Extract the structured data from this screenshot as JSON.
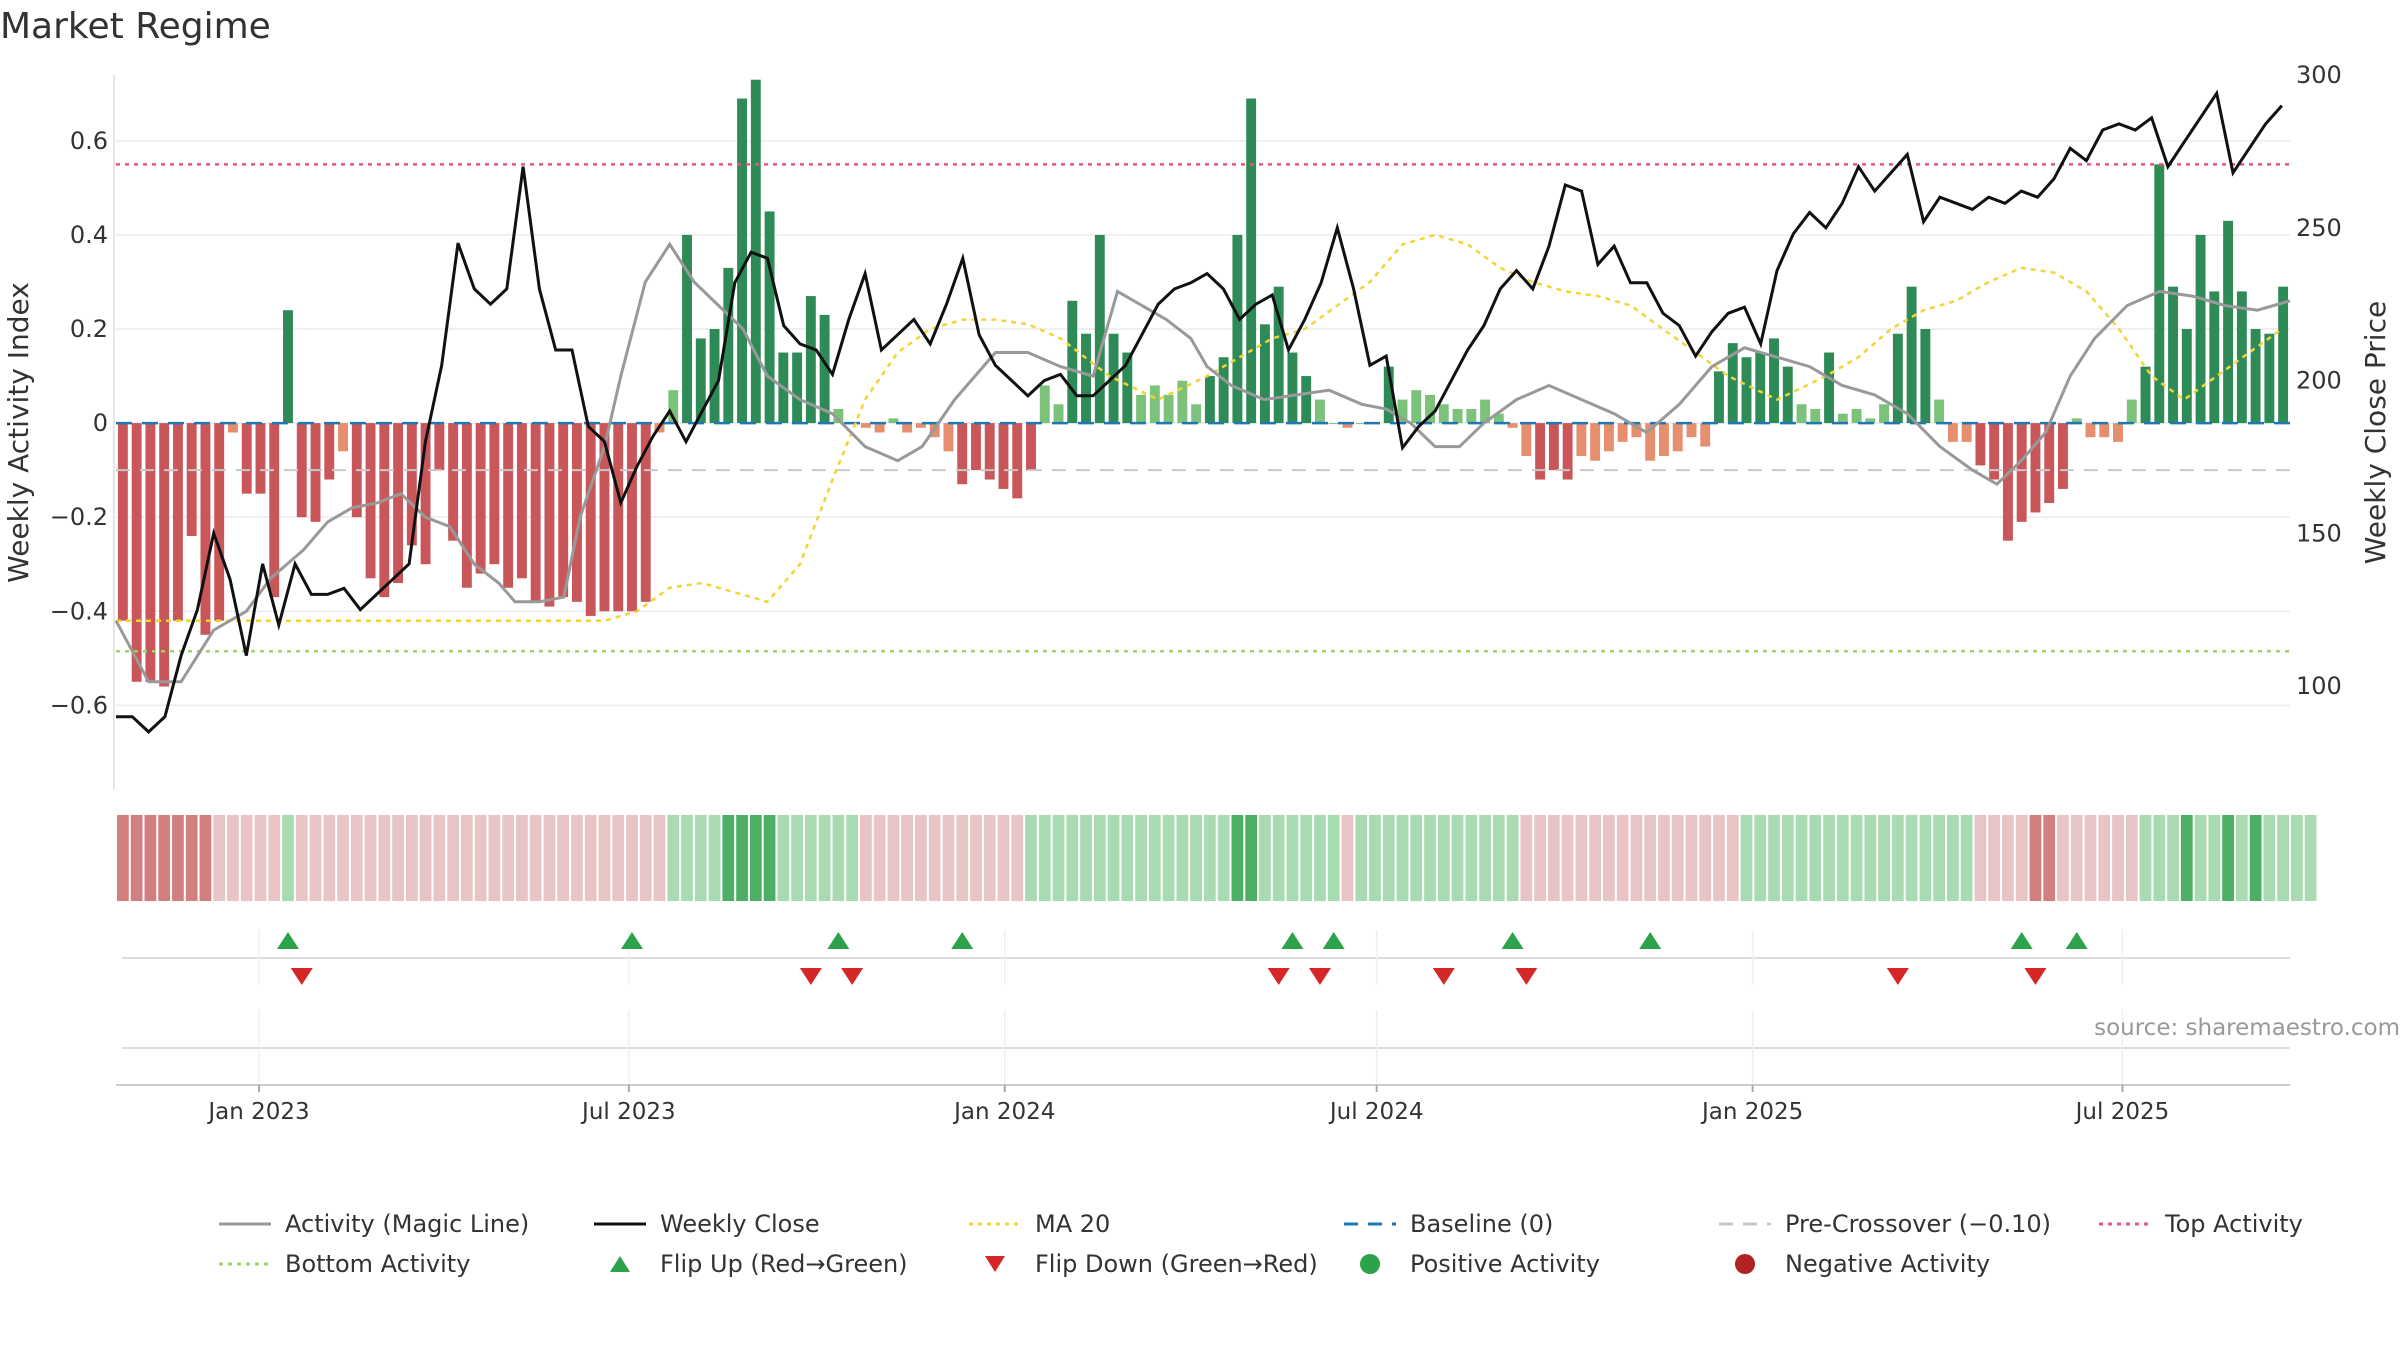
{
  "title": "Market Regime",
  "source": "source: sharemaestro.com",
  "chart_data": {
    "type": "bar+line",
    "y_left_label": "Weekly Activity Index",
    "y_right_label": "Weekly Close Price",
    "y_left_ticks": [
      "0.6",
      "0.4",
      "0.2",
      "0",
      "−0.2",
      "−0.4",
      "−0.6"
    ],
    "y_right_ticks": [
      "300",
      "250",
      "200",
      "150",
      "100"
    ],
    "y_left_range": [
      -0.78,
      0.74
    ],
    "y_right_range": [
      66,
      300
    ],
    "x_tick_labels": [
      "Jan 2023",
      "Jul 2023",
      "Jan 2024",
      "Jul 2024",
      "Jan 2025",
      "Jul 2025"
    ],
    "x_range": [
      "2022-10-23",
      "2025-09-21"
    ],
    "bar_dates_start": "2022-10-23",
    "bar_interval_days": 7,
    "activity_bars": [
      -0.42,
      -0.55,
      -0.55,
      -0.56,
      -0.42,
      -0.24,
      -0.45,
      -0.42,
      -0.02,
      -0.15,
      -0.15,
      -0.37,
      0.24,
      -0.2,
      -0.21,
      -0.12,
      -0.06,
      -0.2,
      -0.33,
      -0.37,
      -0.34,
      -0.26,
      -0.3,
      -0.1,
      -0.25,
      -0.35,
      -0.32,
      -0.3,
      -0.35,
      -0.33,
      -0.38,
      -0.39,
      -0.37,
      -0.38,
      -0.41,
      -0.4,
      -0.4,
      -0.4,
      -0.38,
      -0.02,
      0.07,
      0.4,
      0.18,
      0.2,
      0.33,
      0.69,
      0.73,
      0.45,
      0.15,
      0.15,
      0.27,
      0.23,
      0.03,
      0.0,
      -0.01,
      -0.02,
      0.01,
      -0.02,
      -0.01,
      -0.03,
      -0.06,
      -0.13,
      -0.1,
      -0.12,
      -0.14,
      -0.16,
      -0.1,
      0.08,
      0.04,
      0.26,
      0.19,
      0.4,
      0.19,
      0.15,
      0.06,
      0.08,
      0.06,
      0.09,
      0.04,
      0.1,
      0.14,
      0.4,
      0.69,
      0.21,
      0.29,
      0.15,
      0.1,
      0.05,
      0.0,
      -0.01,
      0.0,
      0.0,
      0.12,
      0.05,
      0.07,
      0.06,
      0.04,
      0.03,
      0.03,
      0.05,
      0.02,
      -0.01,
      -0.07,
      -0.12,
      -0.1,
      -0.12,
      -0.07,
      -0.08,
      -0.06,
      -0.04,
      -0.03,
      -0.08,
      -0.07,
      -0.06,
      -0.03,
      -0.05,
      0.11,
      0.17,
      0.14,
      0.15,
      0.18,
      0.12,
      0.04,
      0.03,
      0.15,
      0.02,
      0.03,
      0.01,
      0.04,
      0.19,
      0.29,
      0.2,
      0.05,
      -0.04,
      -0.04,
      -0.09,
      -0.12,
      -0.25,
      -0.21,
      -0.19,
      -0.17,
      -0.14,
      0.01,
      -0.03,
      -0.03,
      -0.04,
      0.05,
      0.12,
      0.55,
      0.29,
      0.2,
      0.4,
      0.28,
      0.43,
      0.28,
      0.2,
      0.19,
      0.29
    ],
    "bar_colors_hex": {
      "strong_negative": "#c9575a",
      "mild_negative": "#e58f6f",
      "strong_positive": "#2e8b57",
      "mild_positive": "#7cc27a"
    },
    "magic_line_points": [
      [
        -0.42,
        0
      ],
      [
        -0.55,
        4
      ],
      [
        -0.55,
        8
      ],
      [
        -0.44,
        12
      ],
      [
        -0.4,
        16
      ],
      [
        -0.33,
        19
      ],
      [
        -0.27,
        23
      ],
      [
        -0.21,
        26
      ],
      [
        -0.18,
        29
      ],
      [
        -0.17,
        32
      ],
      [
        -0.15,
        35
      ],
      [
        -0.2,
        38
      ],
      [
        -0.22,
        41
      ],
      [
        -0.3,
        44
      ],
      [
        -0.34,
        47
      ],
      [
        -0.38,
        49
      ],
      [
        -0.38,
        52
      ],
      [
        -0.37,
        55
      ],
      [
        -0.2,
        57
      ],
      [
        -0.05,
        60
      ],
      [
        0.1,
        62
      ],
      [
        0.3,
        65
      ],
      [
        0.38,
        68
      ],
      [
        0.3,
        71
      ],
      [
        0.25,
        74
      ],
      [
        0.2,
        77
      ],
      [
        0.1,
        80
      ],
      [
        0.05,
        84
      ],
      [
        0.02,
        88
      ],
      [
        -0.05,
        92
      ],
      [
        -0.08,
        96
      ],
      [
        -0.05,
        99
      ],
      [
        0.05,
        103
      ],
      [
        0.15,
        108
      ],
      [
        0.15,
        112
      ],
      [
        0.12,
        116
      ],
      [
        0.1,
        120
      ],
      [
        0.28,
        123
      ],
      [
        0.25,
        126
      ],
      [
        0.22,
        129
      ],
      [
        0.18,
        132
      ],
      [
        0.12,
        134
      ],
      [
        0.08,
        137
      ],
      [
        0.05,
        141
      ],
      [
        0.06,
        145
      ],
      [
        0.07,
        149
      ],
      [
        0.04,
        153
      ],
      [
        0.03,
        156
      ],
      [
        0.0,
        159
      ],
      [
        -0.05,
        162
      ],
      [
        -0.05,
        165
      ],
      [
        0.0,
        168
      ],
      [
        0.05,
        172
      ],
      [
        0.08,
        176
      ],
      [
        0.05,
        180
      ],
      [
        0.02,
        184
      ],
      [
        -0.02,
        188
      ],
      [
        0.04,
        192
      ],
      [
        0.12,
        196
      ],
      [
        0.16,
        200
      ],
      [
        0.14,
        204
      ],
      [
        0.12,
        208
      ],
      [
        0.08,
        212
      ],
      [
        0.06,
        216
      ],
      [
        0.02,
        220
      ],
      [
        -0.05,
        224
      ],
      [
        -0.1,
        228
      ],
      [
        -0.13,
        231
      ],
      [
        -0.08,
        234
      ],
      [
        -0.02,
        237
      ],
      [
        0.1,
        240
      ],
      [
        0.18,
        243
      ],
      [
        0.25,
        247
      ],
      [
        0.28,
        251
      ],
      [
        0.27,
        255
      ],
      [
        0.25,
        259
      ],
      [
        0.24,
        263
      ],
      [
        0.26,
        267
      ]
    ],
    "weekly_close_points": [
      [
        90,
        0
      ],
      [
        90,
        2
      ],
      [
        85,
        4
      ],
      [
        90,
        6
      ],
      [
        110,
        8
      ],
      [
        125,
        10
      ],
      [
        150,
        12
      ],
      [
        135,
        14
      ],
      [
        110,
        16
      ],
      [
        140,
        18
      ],
      [
        120,
        20
      ],
      [
        140,
        22
      ],
      [
        130,
        24
      ],
      [
        130,
        26
      ],
      [
        132,
        28
      ],
      [
        125,
        30
      ],
      [
        130,
        32
      ],
      [
        135,
        34
      ],
      [
        140,
        36
      ],
      [
        180,
        38
      ],
      [
        205,
        40
      ],
      [
        245,
        42
      ],
      [
        230,
        44
      ],
      [
        225,
        46
      ],
      [
        230,
        48
      ],
      [
        270,
        50
      ],
      [
        230,
        52
      ],
      [
        210,
        54
      ],
      [
        210,
        56
      ],
      [
        185,
        58
      ],
      [
        180,
        60
      ],
      [
        160,
        62
      ],
      [
        172,
        64
      ],
      [
        182,
        66
      ],
      [
        190,
        68
      ],
      [
        180,
        70
      ],
      [
        190,
        72
      ],
      [
        200,
        74
      ],
      [
        232,
        76
      ],
      [
        242,
        78
      ],
      [
        240,
        80
      ],
      [
        218,
        82
      ],
      [
        212,
        84
      ],
      [
        210,
        86
      ],
      [
        202,
        88
      ],
      [
        220,
        90
      ],
      [
        235,
        92
      ],
      [
        210,
        94
      ],
      [
        215,
        96
      ],
      [
        220,
        98
      ],
      [
        212,
        100
      ],
      [
        225,
        102
      ],
      [
        240,
        104
      ],
      [
        215,
        106
      ],
      [
        205,
        108
      ],
      [
        200,
        110
      ],
      [
        195,
        112
      ],
      [
        200,
        114
      ],
      [
        202,
        116
      ],
      [
        195,
        118
      ],
      [
        195,
        120
      ],
      [
        200,
        122
      ],
      [
        205,
        124
      ],
      [
        215,
        126
      ],
      [
        225,
        128
      ],
      [
        230,
        130
      ],
      [
        232,
        132
      ],
      [
        235,
        134
      ],
      [
        230,
        136
      ],
      [
        220,
        138
      ],
      [
        225,
        140
      ],
      [
        228,
        142
      ],
      [
        210,
        144
      ],
      [
        220,
        146
      ],
      [
        232,
        148
      ],
      [
        250,
        150
      ],
      [
        230,
        152
      ],
      [
        205,
        154
      ],
      [
        208,
        156
      ],
      [
        178,
        158
      ],
      [
        185,
        160
      ],
      [
        190,
        162
      ],
      [
        200,
        164
      ],
      [
        210,
        166
      ],
      [
        218,
        168
      ],
      [
        230,
        170
      ],
      [
        236,
        172
      ],
      [
        230,
        174
      ],
      [
        244,
        176
      ],
      [
        264,
        178
      ],
      [
        262,
        180
      ],
      [
        238,
        182
      ],
      [
        244,
        184
      ],
      [
        232,
        186
      ],
      [
        232,
        188
      ],
      [
        222,
        190
      ],
      [
        218,
        192
      ],
      [
        208,
        194
      ],
      [
        216,
        196
      ],
      [
        222,
        198
      ],
      [
        224,
        200
      ],
      [
        212,
        202
      ],
      [
        236,
        204
      ],
      [
        248,
        206
      ],
      [
        255,
        208
      ],
      [
        250,
        210
      ],
      [
        258,
        212
      ],
      [
        270,
        214
      ],
      [
        262,
        216
      ],
      [
        268,
        218
      ],
      [
        274,
        220
      ],
      [
        252,
        222
      ],
      [
        260,
        224
      ],
      [
        258,
        226
      ],
      [
        256,
        228
      ],
      [
        260,
        230
      ],
      [
        258,
        232
      ],
      [
        262,
        234
      ],
      [
        260,
        236
      ],
      [
        266,
        238
      ],
      [
        276,
        240
      ],
      [
        272,
        242
      ],
      [
        282,
        244
      ],
      [
        284,
        246
      ],
      [
        282,
        248
      ],
      [
        286,
        250
      ],
      [
        270,
        252
      ],
      [
        278,
        254
      ],
      [
        286,
        256
      ],
      [
        294,
        258
      ],
      [
        268,
        260
      ],
      [
        276,
        262
      ],
      [
        284,
        264
      ],
      [
        290,
        266
      ]
    ],
    "ma20_points": [
      [
        -0.42,
        0
      ],
      [
        -0.42,
        20
      ],
      [
        -0.42,
        40
      ],
      [
        -0.42,
        60
      ],
      [
        -0.4,
        64
      ],
      [
        -0.35,
        68
      ],
      [
        -0.34,
        72
      ],
      [
        -0.36,
        76
      ],
      [
        -0.38,
        80
      ],
      [
        -0.3,
        84
      ],
      [
        -0.12,
        88
      ],
      [
        0.05,
        92
      ],
      [
        0.15,
        96
      ],
      [
        0.2,
        100
      ],
      [
        0.22,
        104
      ],
      [
        0.22,
        108
      ],
      [
        0.21,
        112
      ],
      [
        0.18,
        116
      ],
      [
        0.1,
        122
      ],
      [
        0.05,
        128
      ],
      [
        0.1,
        134
      ],
      [
        0.14,
        138
      ],
      [
        0.18,
        142
      ],
      [
        0.2,
        146
      ],
      [
        0.25,
        150
      ],
      [
        0.3,
        154
      ],
      [
        0.38,
        158
      ],
      [
        0.4,
        162
      ],
      [
        0.38,
        166
      ],
      [
        0.33,
        170
      ],
      [
        0.3,
        174
      ],
      [
        0.28,
        178
      ],
      [
        0.27,
        182
      ],
      [
        0.25,
        186
      ],
      [
        0.2,
        190
      ],
      [
        0.15,
        194
      ],
      [
        0.1,
        198
      ],
      [
        0.05,
        204
      ],
      [
        0.1,
        210
      ],
      [
        0.14,
        214
      ],
      [
        0.2,
        218
      ],
      [
        0.24,
        222
      ],
      [
        0.26,
        226
      ],
      [
        0.3,
        230
      ],
      [
        0.33,
        234
      ],
      [
        0.32,
        238
      ],
      [
        0.28,
        242
      ],
      [
        0.2,
        246
      ],
      [
        0.1,
        250
      ],
      [
        0.05,
        254
      ],
      [
        0.1,
        258
      ],
      [
        0.15,
        262
      ],
      [
        0.2,
        266
      ]
    ],
    "baseline": 0,
    "pre_crossover": -0.1,
    "top_activity": 0.55,
    "bottom_activity": -0.485,
    "regime_strip_levels": [
      -2,
      -2,
      -2,
      -2,
      -2,
      -2,
      -2,
      -1,
      -1,
      -1,
      -1,
      -1,
      1,
      -1,
      -1,
      -1,
      -1,
      -1,
      -1,
      -1,
      -1,
      -1,
      -1,
      -1,
      -1,
      -1,
      -1,
      -1,
      -1,
      -1,
      -1,
      -1,
      -1,
      -1,
      -1,
      -1,
      -1,
      -1,
      -1,
      -1,
      1,
      1,
      1,
      1,
      2,
      2,
      2,
      2,
      1,
      1,
      1,
      1,
      1,
      1,
      -1,
      -1,
      -1,
      -1,
      -1,
      -1,
      -1,
      -1,
      -1,
      -1,
      -1,
      -1,
      1,
      1,
      1,
      1,
      1,
      1,
      1,
      1,
      1,
      1,
      1,
      1,
      1,
      1,
      1,
      2,
      2,
      1,
      1,
      1,
      1,
      1,
      1,
      -1,
      1,
      1,
      1,
      1,
      1,
      1,
      1,
      1,
      1,
      1,
      1,
      1,
      -1,
      -1,
      -1,
      -1,
      -1,
      -1,
      -1,
      -1,
      -1,
      -1,
      -1,
      -1,
      -1,
      -1,
      -1,
      -1,
      1,
      1,
      1,
      1,
      1,
      1,
      1,
      1,
      1,
      1,
      1,
      1,
      1,
      1,
      1,
      1,
      1,
      -1,
      -1,
      -1,
      -1,
      -2,
      -2,
      -1,
      -1,
      -1,
      -1,
      -1,
      -1,
      1,
      1,
      1,
      2,
      1,
      1,
      2,
      1,
      2,
      1,
      1,
      1,
      1
    ],
    "flip_up_indices": [
      12,
      37,
      52,
      61,
      85,
      88,
      101,
      111,
      138,
      142
    ],
    "flip_down_indices": [
      13,
      50,
      53,
      84,
      87,
      96,
      102,
      129,
      139
    ],
    "legend": [
      {
        "label": "Activity (Magic Line)",
        "key": "line",
        "color": "#999999"
      },
      {
        "label": "Weekly Close",
        "key": "line",
        "color": "#111111"
      },
      {
        "label": "MA 20",
        "key": "dotted",
        "color": "#f2d535"
      },
      {
        "label": "Baseline (0)",
        "key": "dashed",
        "color": "#1f77b4"
      },
      {
        "label": "Pre-Crossover (−0.10)",
        "key": "dashed",
        "color": "#c8c8c8"
      },
      {
        "label": "Top Activity",
        "key": "dotted",
        "color": "#e05a7a"
      },
      {
        "label": "Bottom Activity",
        "key": "dotted",
        "color": "#9fd26a"
      },
      {
        "label": "Flip Up (Red→Green)",
        "key": "tri-up",
        "color": "#2ca24a"
      },
      {
        "label": "Flip Down (Green→Red)",
        "key": "tri-down",
        "color": "#d62728"
      },
      {
        "label": "Positive Activity",
        "key": "dot",
        "color": "#2ca24a"
      },
      {
        "label": "Negative Activity",
        "key": "dot",
        "color": "#b22222"
      }
    ]
  }
}
